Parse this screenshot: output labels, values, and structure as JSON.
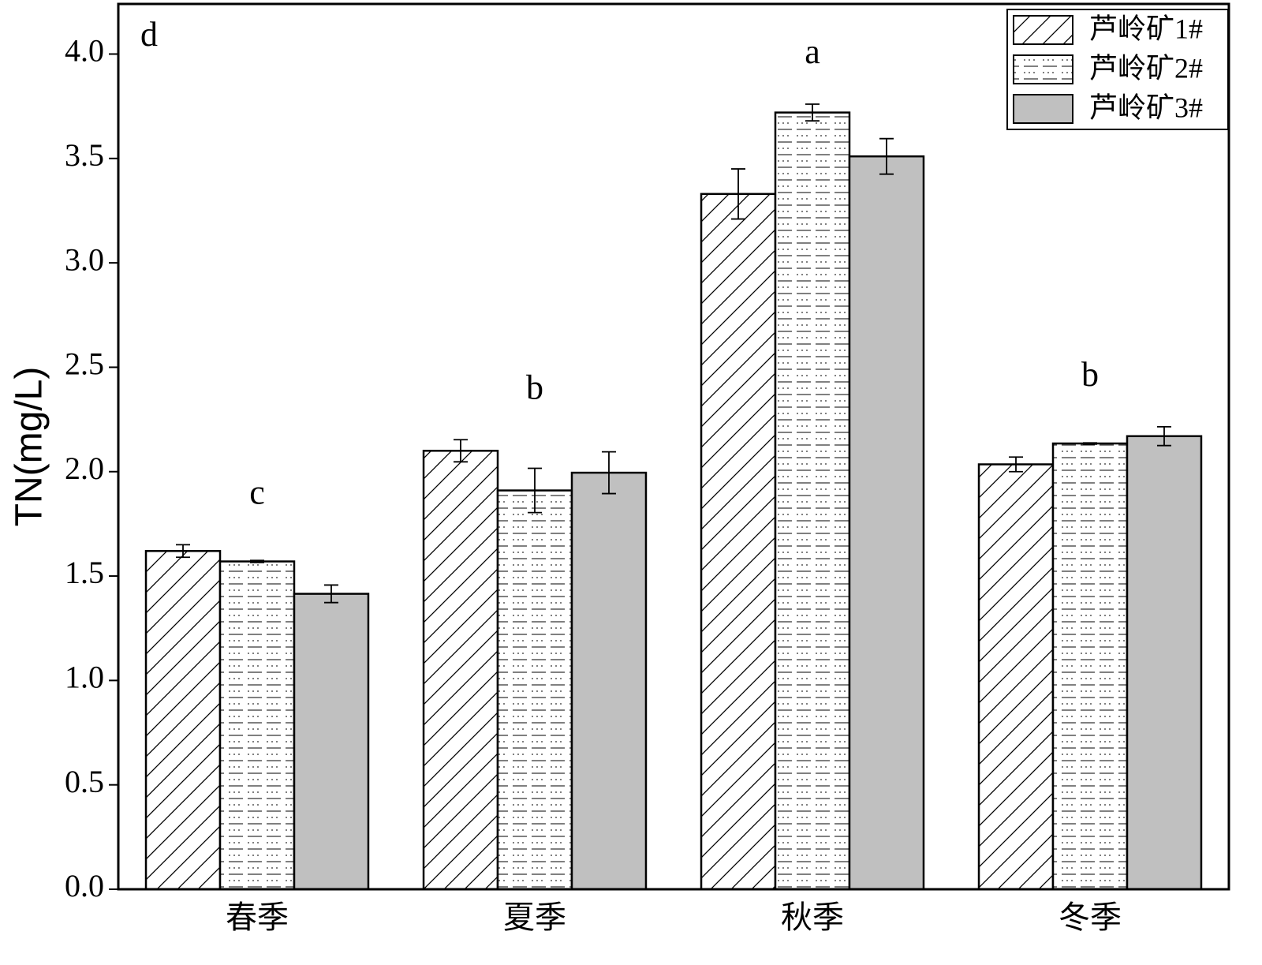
{
  "chart_data": {
    "type": "bar",
    "panel_label": "d",
    "y_label": "TN(mg/L)",
    "categories": [
      "春季",
      "夏季",
      "秋季",
      "冬季"
    ],
    "annotations": [
      "c",
      "b",
      "a",
      "b"
    ],
    "series": [
      {
        "name": "芦岭矿1#",
        "color": "#ffffff",
        "pattern": "hatch",
        "values": [
          1.62,
          2.1,
          3.33,
          2.035
        ],
        "errors": [
          0.03,
          0.053,
          0.12,
          0.035
        ]
      },
      {
        "name": "芦岭矿2#",
        "color": "#ffffff",
        "pattern": "dash-dot",
        "values": [
          1.57,
          1.91,
          3.72,
          2.135
        ],
        "errors": [
          0.005,
          0.106,
          0.04,
          0.003
        ]
      },
      {
        "name": "芦岭矿3#",
        "color": "#c0c0c0",
        "pattern": "solid",
        "values": [
          1.415,
          1.995,
          3.51,
          2.17
        ],
        "errors": [
          0.042,
          0.1,
          0.085,
          0.045
        ]
      }
    ],
    "ylim": [
      0,
      4.24
    ],
    "yticks": [
      {
        "value": 0,
        "label": "0.0"
      },
      0.5,
      {
        "value": 1,
        "label": "1.0"
      },
      1.5,
      {
        "value": 2,
        "label": "2.0"
      },
      2.5,
      {
        "value": 3,
        "label": "3.0"
      },
      3.5,
      {
        "value": 4,
        "label": "4.0"
      }
    ],
    "legend": "upper right"
  }
}
